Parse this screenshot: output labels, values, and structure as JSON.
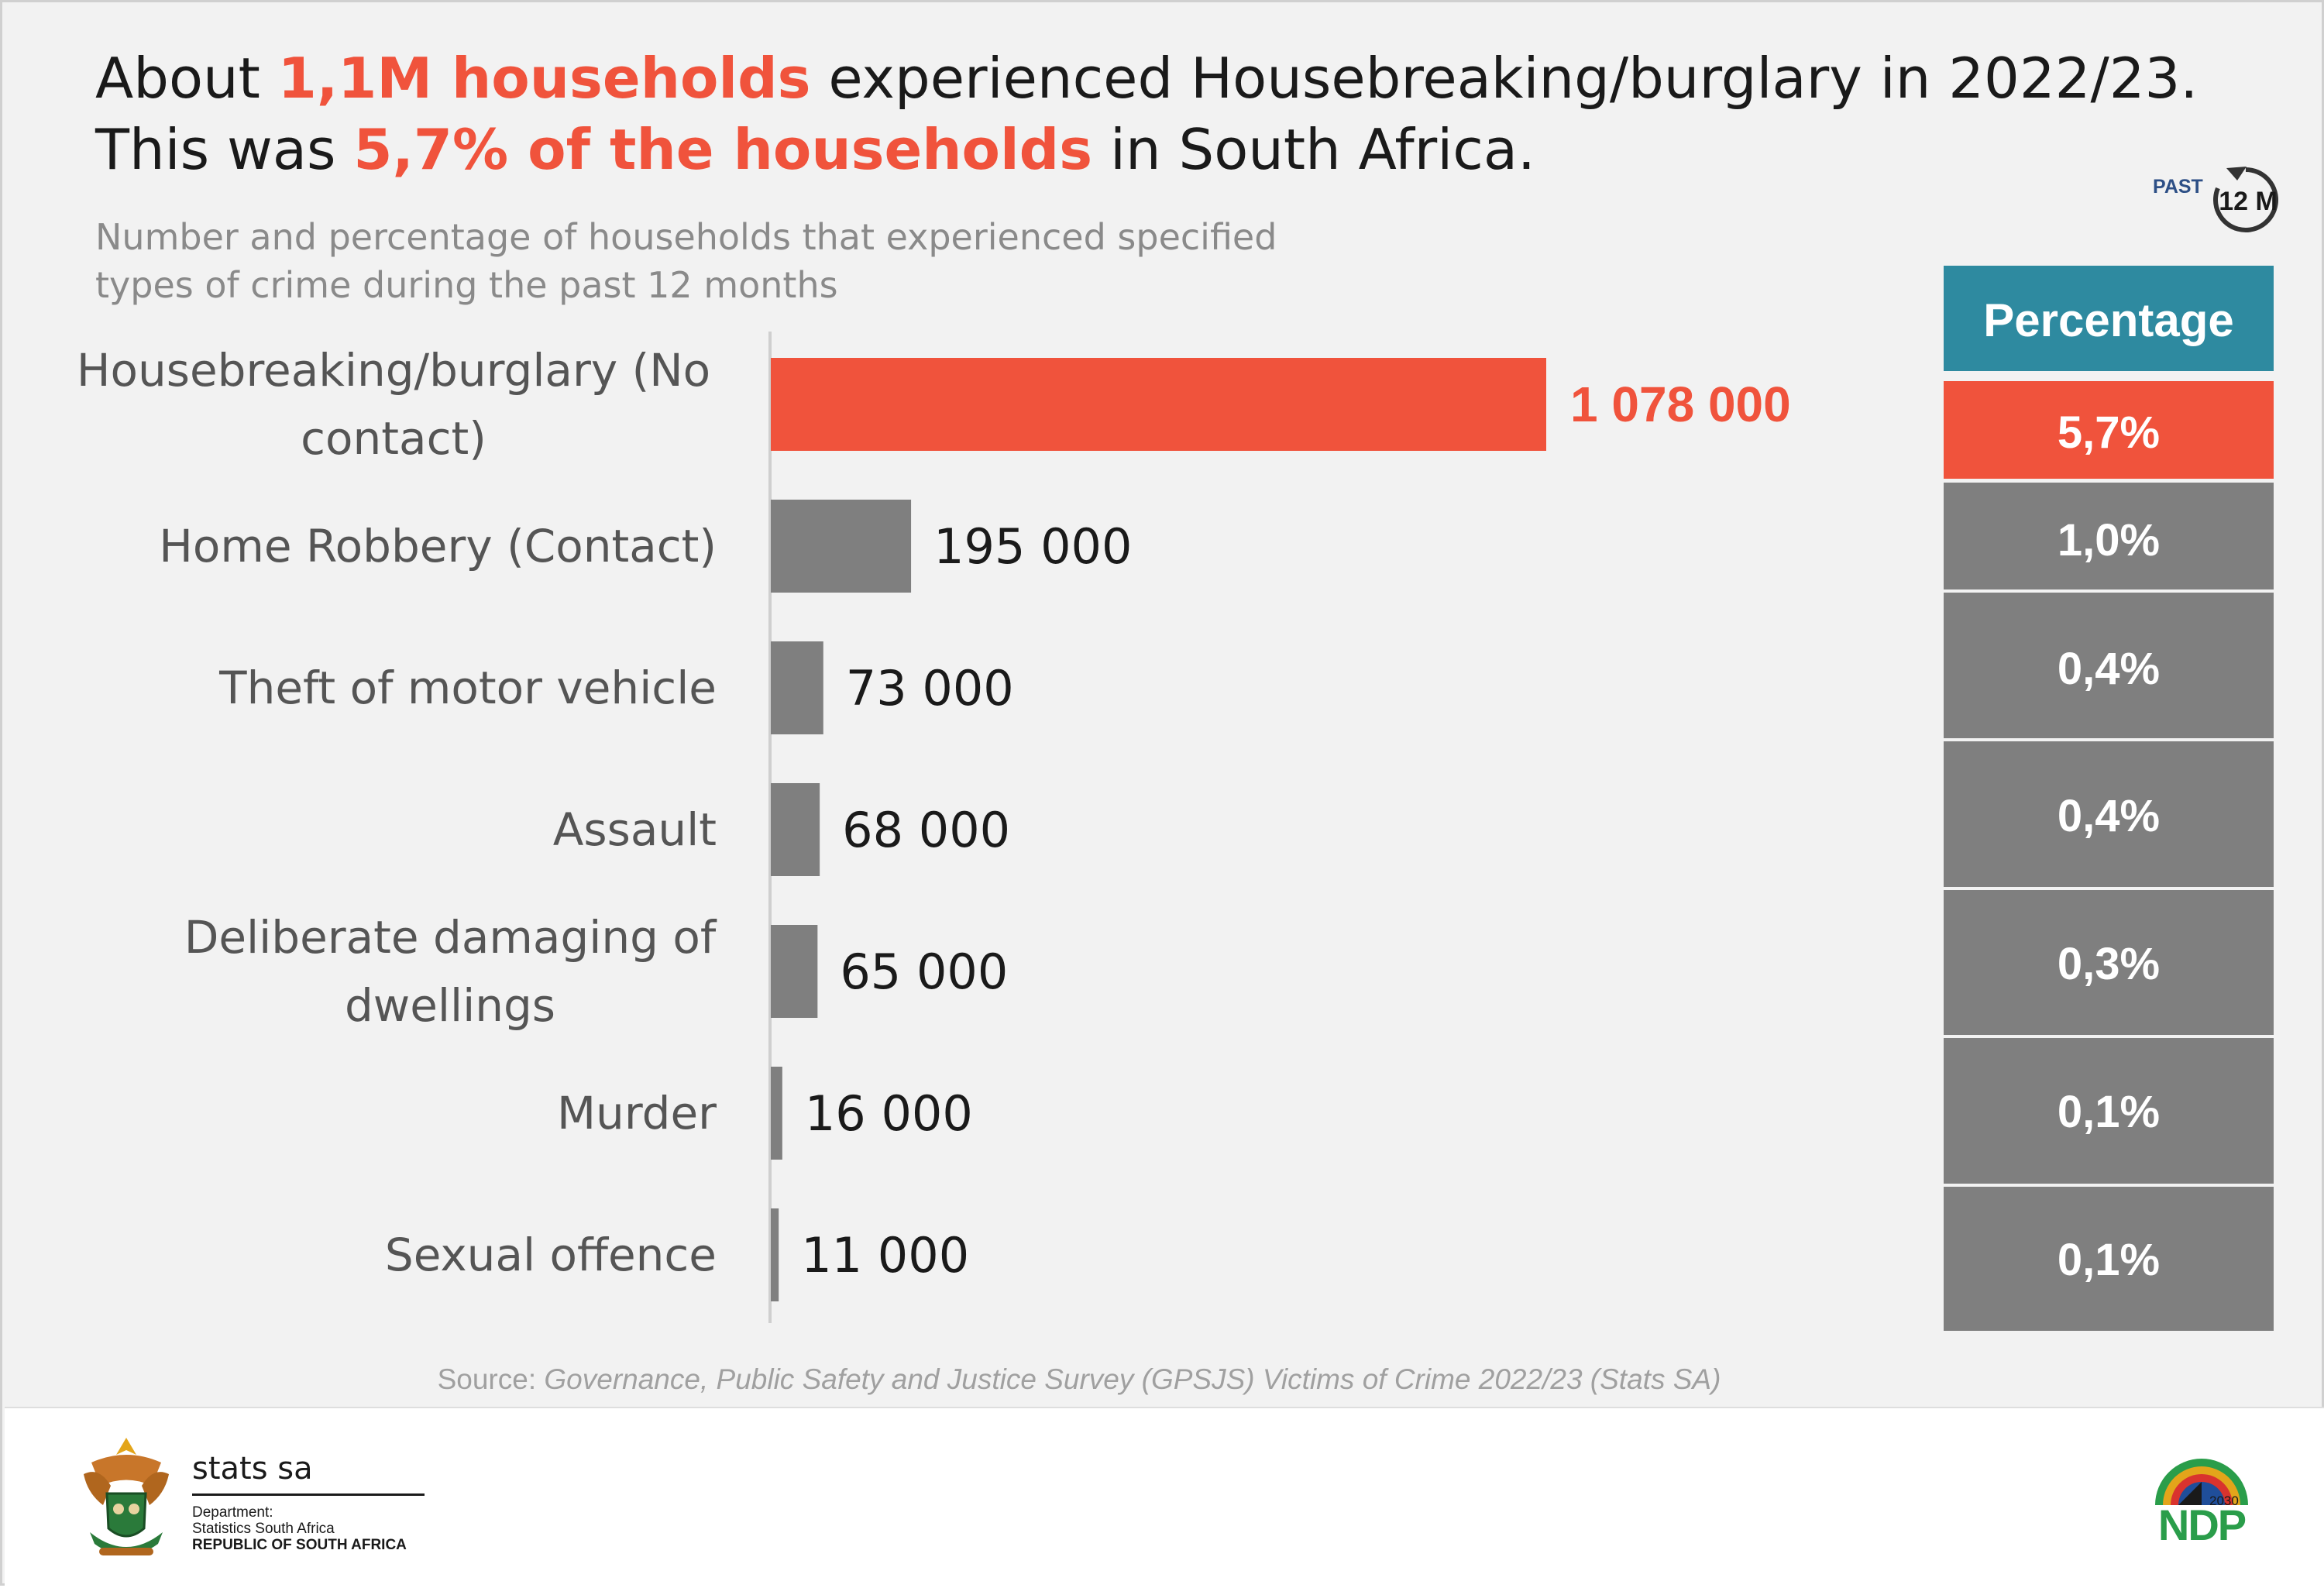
{
  "headline": {
    "part1": "About ",
    "highlight1": "1,1M households",
    "part2": " experienced Housebreaking/burglary in 2022/23. This was ",
    "highlight2": "5,7% of the households",
    "part3": " in South Africa."
  },
  "subtitle": "Number and percentage of households that experienced specified types of crime during the past 12 months",
  "period_badge": {
    "past": "PAST",
    "months": "12 M",
    "icon": "clock-cycle-icon"
  },
  "colors": {
    "highlight": "#f0533c",
    "bar_grey": "#7f7f7f",
    "header_teal": "#2e8aa0",
    "subtitle_grey": "#8a8a8a"
  },
  "chart_data": {
    "type": "bar",
    "orientation": "horizontal",
    "categories": [
      "Housebreaking/burglary (No contact)",
      "Home Robbery (Contact)",
      "Theft of motor vehicle",
      "Assault",
      "Deliberate damaging of dwellings",
      "Murder",
      "Sexual offence"
    ],
    "category_lines": [
      [
        "Housebreaking/burglary (No",
        "contact)"
      ],
      [
        "Home Robbery (Contact)"
      ],
      [
        "Theft of motor vehicle"
      ],
      [
        "Assault"
      ],
      [
        "Deliberate damaging of",
        "dwellings"
      ],
      [
        "Murder"
      ],
      [
        "Sexual offence"
      ]
    ],
    "values": [
      1078000,
      195000,
      73000,
      68000,
      65000,
      16000,
      11000
    ],
    "value_labels": [
      "1 078 000",
      "195 000",
      "73 000",
      "68 000",
      "65 000",
      "16 000",
      "11 000"
    ],
    "percentage_header": "Percentage",
    "percentages": [
      "5,7%",
      "1,0%",
      "0,4%",
      "0,4%",
      "0,3%",
      "0,1%",
      "0,1%"
    ],
    "highlighted_index": 0,
    "xlim": [
      0,
      1078000
    ]
  },
  "source": {
    "prefix": "Source: ",
    "text": "Governance, Public Safety and Justice Survey (GPSJS) Victims of Crime 2022/23 (Stats SA)"
  },
  "footer": {
    "brand": "stats sa",
    "department": "Department:",
    "organisation": "Statistics South Africa",
    "country": "REPUBLIC OF SOUTH AFRICA",
    "crest_icon": "coat-of-arms-icon",
    "ndp_logo": {
      "icon": "ndp-2030-logo",
      "text": "NDP",
      "year": "2030"
    }
  }
}
